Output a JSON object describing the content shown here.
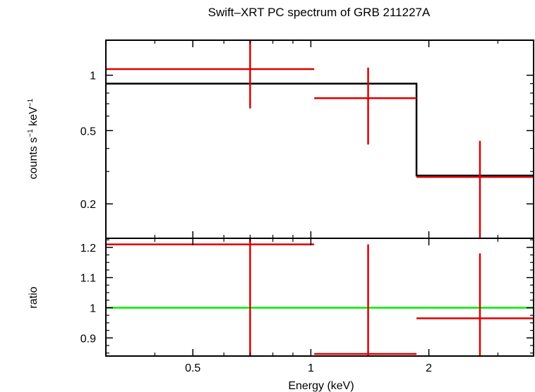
{
  "chart_data": {
    "title": "Swift–XRT PC spectrum of GRB 211227A",
    "xlabel": "Energy (keV)",
    "x_scale": "log",
    "xlim": [
      0.3,
      3.7
    ],
    "x_tick_labels": [
      "0.5",
      "1",
      "2"
    ],
    "panels": [
      {
        "type": "line",
        "ylabel": "counts s⁻¹ keV⁻¹",
        "y_scale": "log",
        "ylim": [
          0.13,
          1.55
        ],
        "y_tick_labels": [
          "0.2",
          "0.5",
          "1"
        ],
        "data": {
          "name": "data",
          "color": "#dd0000",
          "points": [
            {
              "x": 0.7,
              "xlo": 0.3,
              "xhi": 1.02,
              "y": 1.08,
              "ylo": 0.66,
              "yhi": 1.55
            },
            {
              "x": 1.4,
              "xlo": 1.02,
              "xhi": 1.86,
              "y": 0.75,
              "ylo": 0.42,
              "yhi": 1.1
            },
            {
              "x": 2.7,
              "xlo": 1.86,
              "xhi": 3.7,
              "y": 0.28,
              "ylo": 0.13,
              "yhi": 0.44
            }
          ]
        },
        "model": {
          "name": "model",
          "color": "#000000",
          "bins": [
            {
              "xlo": 0.3,
              "xhi": 1.86,
              "y": 0.9
            },
            {
              "xlo": 1.86,
              "xhi": 3.7,
              "y": 0.285
            }
          ]
        }
      },
      {
        "type": "line",
        "ylabel": "ratio",
        "y_scale": "linear",
        "ylim": [
          0.84,
          1.23
        ],
        "y_tick_labels": [
          "0.9",
          "1",
          "1.1",
          "1.2"
        ],
        "reference_line": {
          "y": 1.0,
          "color": "#00ee00"
        },
        "data": {
          "name": "ratio",
          "color": "#dd0000",
          "points": [
            {
              "x": 0.7,
              "xlo": 0.3,
              "xhi": 1.02,
              "y": 1.21,
              "ylo": 0.84,
              "yhi": 1.23
            },
            {
              "x": 1.4,
              "xlo": 1.02,
              "xhi": 1.86,
              "y": 0.847,
              "ylo": 0.84,
              "yhi": 1.21
            },
            {
              "x": 2.7,
              "xlo": 1.86,
              "xhi": 3.7,
              "y": 0.965,
              "ylo": 0.84,
              "yhi": 1.18
            }
          ]
        }
      }
    ]
  }
}
